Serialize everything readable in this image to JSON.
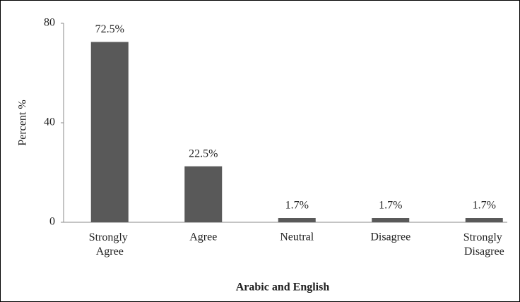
{
  "chart_data": {
    "type": "bar",
    "categories": [
      "Strongly Agree",
      "Agree",
      "Neutral",
      "Disagree",
      "Strongly Disagree"
    ],
    "values": [
      72.5,
      22.5,
      1.7,
      1.7,
      1.7
    ],
    "value_labels": [
      "72.5%",
      "22.5%",
      "1.7%",
      "1.7%",
      "1.7%"
    ],
    "color": "#595959",
    "xlabel": "Arabic and English",
    "ylabel": "Percent %",
    "ylim": [
      0,
      80
    ],
    "yticks": [
      0,
      40,
      80
    ],
    "grid": false
  }
}
